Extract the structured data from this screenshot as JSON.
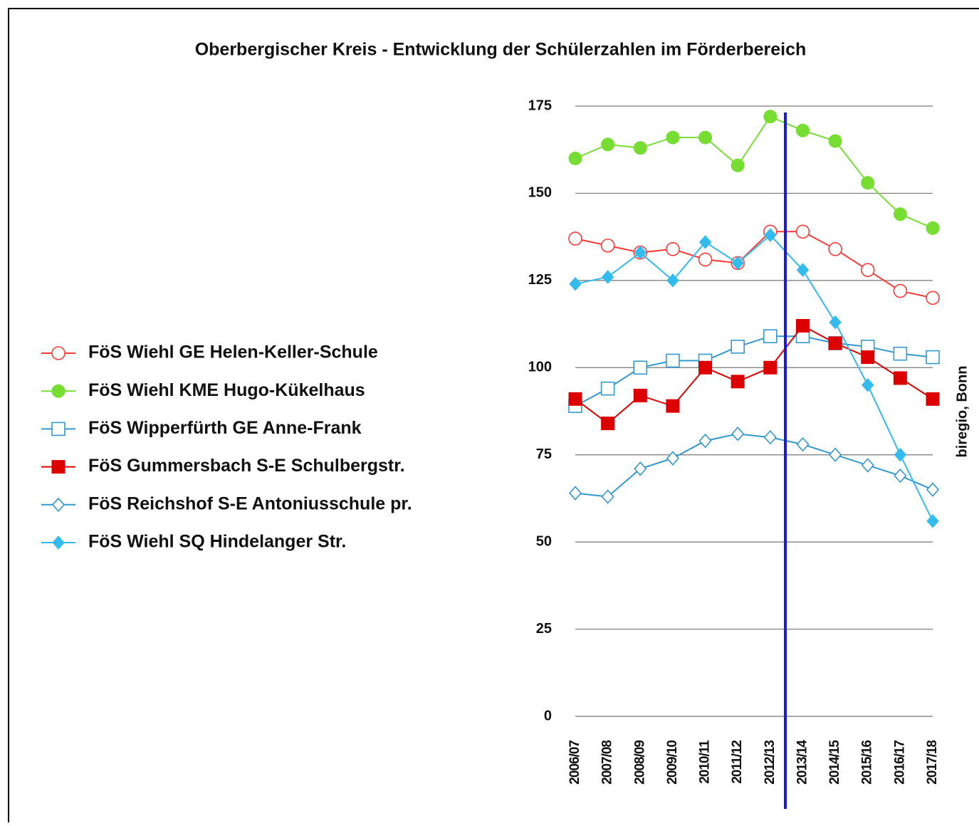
{
  "chart_data": {
    "type": "line",
    "title": "Oberbergischer Kreis - Entwicklung der Schülerzahlen im Förderbereich",
    "source": "biregio, Bonn",
    "categories": [
      "2006/07",
      "2007/08",
      "2008/09",
      "2009/10",
      "2010/11",
      "2011/12",
      "2012/13",
      "2013/14",
      "2014/15",
      "2015/16",
      "2016/17",
      "2017/18"
    ],
    "ylim": [
      0,
      175
    ],
    "yticks": [
      0,
      25,
      50,
      75,
      100,
      125,
      150,
      175
    ],
    "grid": true,
    "legend": "left",
    "series": [
      {
        "name": "FöS Wiehl GE Helen-Keller-Schule",
        "color": "#ff3b3b",
        "marker": "circle-open",
        "values": [
          137,
          135,
          133,
          134,
          131,
          130,
          139,
          139,
          134,
          128,
          122,
          120
        ]
      },
      {
        "name": "FöS Wiehl KME Hugo-Kükelhaus",
        "color": "#77dd33",
        "marker": "circle",
        "values": [
          160,
          164,
          163,
          166,
          166,
          158,
          172,
          168,
          165,
          153,
          144,
          140
        ]
      },
      {
        "name": "FöS Wipperfürth GE Anne-Frank",
        "color": "#3399cc",
        "marker": "square-open",
        "values": [
          89,
          94,
          100,
          102,
          102,
          106,
          109,
          109,
          107,
          106,
          104,
          103
        ]
      },
      {
        "name": "FöS Gummersbach S-E Schulbergstr.",
        "color": "#dd0000",
        "marker": "square",
        "values": [
          91,
          84,
          92,
          89,
          100,
          96,
          100,
          112,
          107,
          103,
          97,
          91
        ]
      },
      {
        "name": "FöS Reichshof S-E Antoniusschule pr.",
        "color": "#3399cc",
        "marker": "diamond-open",
        "values": [
          64,
          63,
          71,
          74,
          79,
          81,
          80,
          78,
          75,
          72,
          69,
          65
        ]
      },
      {
        "name": "FöS Wiehl SQ Hindelanger Str.",
        "color": "#33bbee",
        "marker": "diamond",
        "values": [
          124,
          126,
          133,
          125,
          136,
          130,
          138,
          128,
          113,
          95,
          75,
          56
        ]
      }
    ]
  }
}
